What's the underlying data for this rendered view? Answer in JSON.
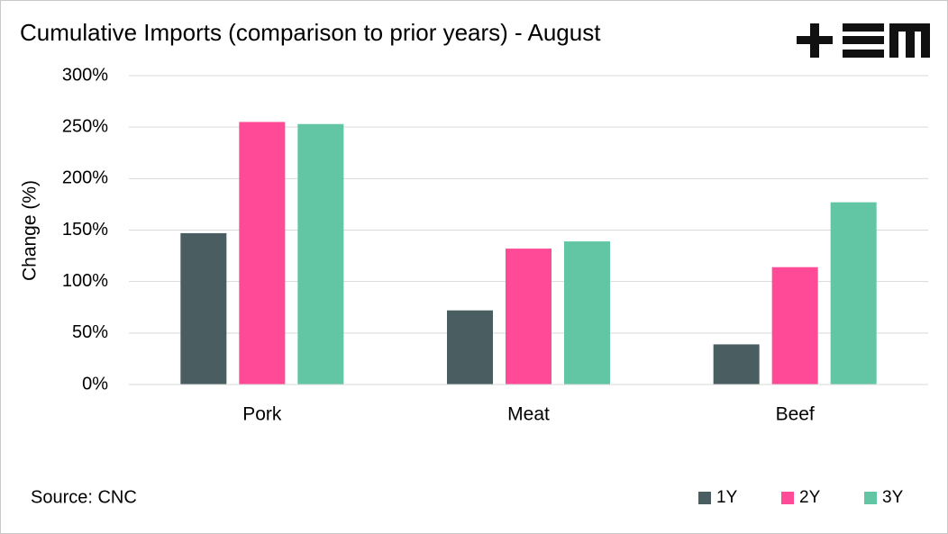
{
  "chart_data": {
    "type": "bar",
    "title": "Cumulative Imports (comparison to prior years) - August",
    "y_label": "Change (%)",
    "source": "Source: CNC",
    "categories": [
      "Pork",
      "Meat",
      "Beef"
    ],
    "series": [
      {
        "name": "1Y",
        "color": "#4a5e61",
        "values": [
          147,
          72,
          39
        ]
      },
      {
        "name": "2Y",
        "color": "#ff4b97",
        "values": [
          255,
          132,
          114
        ]
      },
      {
        "name": "3Y",
        "color": "#62c6a5",
        "values": [
          253,
          139,
          177
        ]
      }
    ],
    "ylim": [
      0,
      300
    ],
    "yticks": [
      {
        "value": 0,
        "label": "0%"
      },
      {
        "value": 50,
        "label": "50%"
      },
      {
        "value": 100,
        "label": "100%"
      },
      {
        "value": 150,
        "label": "150%"
      },
      {
        "value": 200,
        "label": "200%"
      },
      {
        "value": 250,
        "label": "250%"
      },
      {
        "value": 300,
        "label": "300%"
      }
    ],
    "grid": true,
    "legend": "bottom-right"
  }
}
